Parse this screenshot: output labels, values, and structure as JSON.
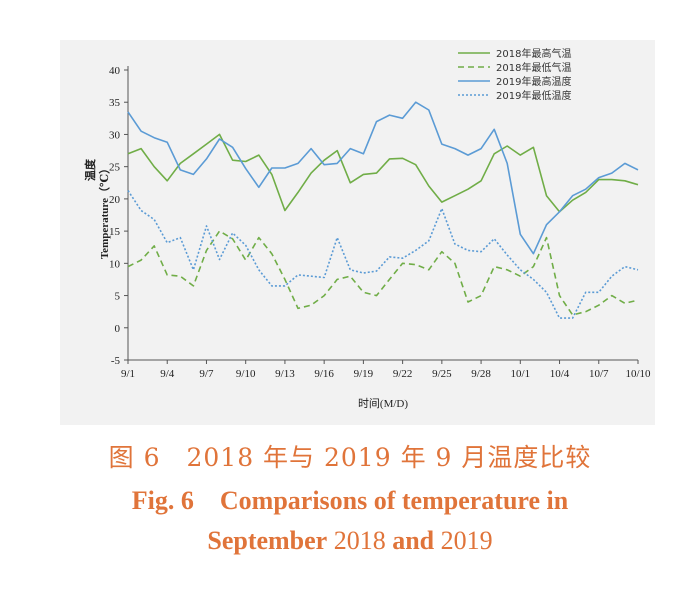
{
  "chart_data": {
    "type": "line",
    "ylabel_zh": "温度",
    "ylabel_en": "Temperature（℃）",
    "xlabel": "时间(M/D)",
    "ylim": [
      -5,
      40
    ],
    "yticks": [
      "-5",
      "0",
      "5",
      "10",
      "15",
      "20",
      "25",
      "30",
      "35",
      "40"
    ],
    "xtick_labels": [
      "9/1",
      "9/4",
      "9/7",
      "9/10",
      "9/13",
      "9/16",
      "9/19",
      "9/22",
      "9/25",
      "9/28",
      "10/1",
      "10/4",
      "10/7",
      "10/10"
    ],
    "x": [
      "9/1",
      "9/2",
      "9/3",
      "9/4",
      "9/5",
      "9/6",
      "9/7",
      "9/8",
      "9/9",
      "9/10",
      "9/11",
      "9/12",
      "9/13",
      "9/14",
      "9/15",
      "9/16",
      "9/17",
      "9/18",
      "9/19",
      "9/20",
      "9/21",
      "9/22",
      "9/23",
      "9/24",
      "9/25",
      "9/26",
      "9/27",
      "9/28",
      "9/29",
      "9/30",
      "10/1",
      "10/2",
      "10/3",
      "10/4",
      "10/5",
      "10/6",
      "10/7",
      "10/8",
      "10/9",
      "10/10"
    ],
    "legend_position": "top-right",
    "grid": false,
    "series": [
      {
        "name": "2018年最高气温",
        "color": "#70ad47",
        "style": "solid",
        "values": [
          27,
          27.8,
          25,
          22.8,
          25.5,
          27,
          28.5,
          30,
          26,
          25.8,
          26.8,
          23.8,
          18.2,
          21,
          24,
          26,
          27.5,
          22.5,
          23.8,
          24,
          26.2,
          26.3,
          25.3,
          22,
          19.5,
          20.5,
          21.5,
          22.8,
          27,
          28.2,
          26.8,
          28,
          20.5,
          18,
          19.8,
          21,
          23,
          23,
          22.8,
          22.2
        ]
      },
      {
        "name": "2018年最低气温",
        "color": "#70ad47",
        "style": "dashed",
        "values": [
          9.5,
          10.5,
          12.7,
          8.2,
          8,
          6.5,
          12,
          15,
          13.8,
          10.5,
          14,
          11.5,
          7.5,
          3,
          3.5,
          5,
          7.5,
          8,
          5.5,
          5,
          7.5,
          10,
          9.8,
          9,
          11.8,
          10,
          4,
          5,
          9.5,
          9,
          8,
          9.5,
          14,
          5,
          2,
          2.5,
          3.5,
          5,
          3.8,
          4.3
        ]
      },
      {
        "name": "2019年最高温度",
        "color": "#5b9bd5",
        "style": "solid",
        "values": [
          33.5,
          30.5,
          29.5,
          28.8,
          24.5,
          23.8,
          26.2,
          29.3,
          28,
          24.7,
          21.8,
          24.8,
          24.8,
          25.5,
          27.8,
          25.3,
          25.5,
          27.8,
          27,
          32,
          33,
          32.5,
          35,
          33.8,
          28.5,
          27.8,
          26.8,
          27.8,
          30.8,
          25.5,
          14.5,
          11.5,
          16,
          18,
          20.5,
          21.5,
          23.3,
          24,
          25.5,
          24.5
        ]
      },
      {
        "name": "2019年最低温度",
        "color": "#5b9bd5",
        "style": "dotted",
        "values": [
          21.3,
          18.2,
          16.8,
          13.2,
          14,
          9,
          15.8,
          10.6,
          14.7,
          12.8,
          9,
          6.5,
          6.5,
          8.2,
          8,
          7.8,
          14,
          9,
          8.5,
          8.8,
          11,
          10.8,
          12,
          13.5,
          18.5,
          13,
          12,
          11.8,
          13.8,
          11.3,
          9,
          7.5,
          5.5,
          1.5,
          1.5,
          5.5,
          5.5,
          8,
          9.5,
          9
        ]
      }
    ]
  },
  "caption": {
    "zh": "图 6　2018 年与 2019 年 9 月温度比较",
    "en_line1": "Fig. 6　Comparisons of temperature in",
    "en_line2_a": "September",
    "en_line2_b": " 2018 ",
    "en_line2_c": "and",
    "en_line2_d": " 2019"
  }
}
